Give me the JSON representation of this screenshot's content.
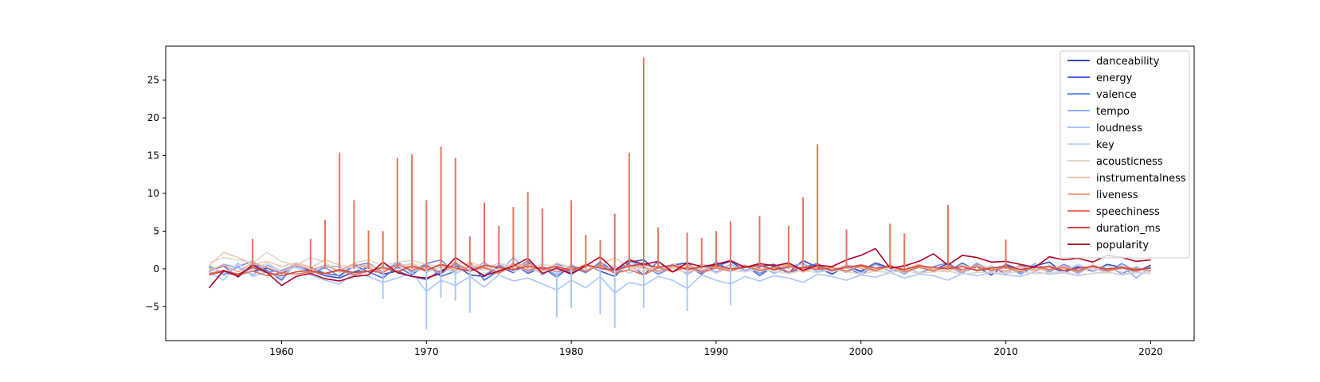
{
  "chart_data": {
    "type": "line",
    "title": "",
    "xlabel": "",
    "ylabel": "",
    "xlim": [
      1952,
      2023
    ],
    "ylim": [
      -9.5,
      29.5
    ],
    "x_ticks": [
      1960,
      1970,
      1980,
      1990,
      2000,
      2010,
      2020
    ],
    "y_ticks": [
      -5,
      0,
      5,
      10,
      15,
      20,
      25
    ],
    "grid": false,
    "legend_position": "upper-right",
    "x": [
      1955,
      1956,
      1957,
      1958,
      1959,
      1960,
      1961,
      1962,
      1963,
      1964,
      1965,
      1966,
      1967,
      1968,
      1969,
      1970,
      1971,
      1972,
      1973,
      1974,
      1975,
      1976,
      1977,
      1978,
      1979,
      1980,
      1981,
      1982,
      1983,
      1984,
      1985,
      1986,
      1987,
      1988,
      1989,
      1990,
      1991,
      1992,
      1993,
      1994,
      1995,
      1996,
      1997,
      1998,
      1999,
      2000,
      2001,
      2002,
      2003,
      2004,
      2005,
      2006,
      2007,
      2008,
      2009,
      2010,
      2011,
      2012,
      2013,
      2014,
      2015,
      2016,
      2017,
      2018,
      2019,
      2020
    ],
    "series": [
      {
        "name": "danceability",
        "color": "#3b4cc0",
        "values": [
          0.2,
          -0.5,
          -0.8,
          -0.3,
          0.1,
          -0.6,
          0.3,
          -0.2,
          -0.9,
          -1.2,
          -0.4,
          0.2,
          -0.7,
          -0.3,
          -1.0,
          -1.4,
          -0.2,
          0.5,
          -0.8,
          -1.0,
          0.3,
          -0.5,
          0.8,
          -0.2,
          0.4,
          -0.6,
          0.6,
          -0.3,
          -1.0,
          0.9,
          1.2,
          -0.4,
          0.5,
          0.8,
          -0.6,
          0.4,
          1.0,
          -0.2,
          0.3,
          0.6,
          -0.5,
          1.1,
          0.2,
          -0.7,
          0.4,
          -0.3,
          0.8,
          0.1,
          -0.6,
          0.5,
          -0.2,
          0.7,
          -0.4,
          0.3,
          -0.8,
          0.6,
          -0.1,
          0.4,
          0.9,
          -0.5,
          0.3,
          -0.3,
          0.6,
          0.2,
          -0.4,
          0.5
        ]
      },
      {
        "name": "energy",
        "color": "#4f69d9",
        "values": [
          -0.3,
          0.4,
          -1.1,
          0.6,
          -0.2,
          -1.5,
          0.8,
          0.2,
          -0.6,
          -0.9,
          0.5,
          -0.4,
          -1.2,
          0.3,
          -0.8,
          0.6,
          -1.0,
          -0.3,
          0.9,
          -1.5,
          -0.2,
          0.7,
          -0.6,
          0.2,
          -1.1,
          0.4,
          -0.5,
          0.9,
          -0.3,
          0.6,
          -0.8,
          1.0,
          -0.4,
          0.3,
          -0.7,
          0.8,
          -0.2,
          0.5,
          -0.9,
          0.4,
          -0.6,
          0.2,
          0.7,
          -0.5,
          0.3,
          -0.8,
          0.6,
          -0.3,
          0.5,
          -0.6,
          0.2,
          -0.4,
          0.8,
          -0.3,
          0.4,
          -0.7,
          0.5,
          -0.2,
          0.3,
          -0.5,
          0.6,
          -0.3,
          0.4,
          -0.6,
          0.2,
          -0.4
        ]
      },
      {
        "name": "valence",
        "color": "#6a8bef",
        "values": [
          0.5,
          -0.8,
          0.3,
          1.0,
          -0.4,
          -0.2,
          0.6,
          -0.7,
          0.2,
          -1.0,
          0.4,
          0.8,
          -0.5,
          0.9,
          -0.3,
          0.7,
          1.2,
          -0.6,
          0.3,
          -0.9,
          0.5,
          -0.2,
          1.1,
          -0.8,
          0.6,
          0.2,
          -0.5,
          0.8,
          -0.3,
          1.0,
          0.4,
          -0.7,
          0.2,
          0.6,
          -0.4,
          0.9,
          -0.2,
          0.5,
          -0.6,
          0.3,
          0.8,
          -0.4,
          0.6,
          -0.2,
          0.4,
          -0.5,
          0.7,
          -0.3,
          0.5,
          -0.6,
          0.3,
          0.8,
          -0.4,
          0.6,
          -0.2,
          0.5,
          -0.7,
          0.3,
          -0.4,
          0.6,
          -0.2,
          0.4,
          -0.5,
          0.7,
          -0.3,
          0.2
        ]
      },
      {
        "name": "tempo",
        "color": "#8caffe",
        "values": [
          -0.4,
          0.6,
          0.2,
          -0.8,
          0.5,
          -0.3,
          0.7,
          -0.6,
          0.4,
          0.3,
          -0.9,
          0.5,
          -0.2,
          0.8,
          -0.5,
          0.2,
          -0.7,
          0.6,
          -0.3,
          0.9,
          -0.6,
          1.5,
          -0.4,
          0.3,
          -0.8,
          0.5,
          -0.2,
          0.6,
          -0.5,
          0.4,
          0.8,
          -0.3,
          0.5,
          -0.7,
          0.3,
          -0.4,
          0.6,
          -0.2,
          0.5,
          -0.6,
          0.3,
          0.7,
          -0.4,
          0.2,
          -0.5,
          0.6,
          -0.3,
          0.4,
          -0.7,
          0.5,
          -0.2,
          0.3,
          -0.6,
          0.8,
          -0.3,
          0.4,
          -0.5,
          0.7,
          -0.2,
          0.3,
          -0.6,
          0.5,
          -0.3,
          0.4,
          -1.2,
          0.3
        ]
      },
      {
        "name": "loudness",
        "color": "#aac7fd",
        "values": [
          -0.5,
          -1.5,
          0.8,
          -1.0,
          -0.4,
          -1.2,
          0.5,
          -0.8,
          -1.5,
          -2.0,
          -0.6,
          -1.0,
          -1.8,
          -1.2,
          -0.5,
          -3.0,
          -1.5,
          -2.2,
          -1.0,
          -2.4,
          -0.8,
          -1.6,
          -1.2,
          -2.0,
          -2.8,
          -1.5,
          -2.5,
          -1.0,
          -3.2,
          -1.8,
          -2.2,
          -1.0,
          -1.5,
          -2.6,
          -0.8,
          -1.5,
          -2.0,
          -1.0,
          -1.6,
          -0.9,
          -1.2,
          -1.8,
          -0.7,
          -1.0,
          -1.5,
          -0.8,
          -1.1,
          -0.5,
          -1.2,
          -0.7,
          -0.9,
          -1.5,
          -0.6,
          -0.9,
          -0.5,
          -0.8,
          -1.0,
          -0.4,
          -0.7,
          -0.5,
          -0.9,
          -0.6,
          -0.4,
          -0.8,
          -0.5,
          -0.6
        ]
      },
      {
        "name": "key",
        "color": "#c5d5f3",
        "values": [
          0.3,
          -0.6,
          0.5,
          -0.2,
          0.8,
          -0.4,
          0.2,
          -0.7,
          0.6,
          -0.3,
          0.4,
          -0.8,
          0.5,
          -0.2,
          0.7,
          -0.5,
          0.3,
          -0.6,
          0.4,
          -0.2,
          0.8,
          -0.4,
          0.3,
          -0.7,
          0.5,
          -0.3,
          0.6,
          -0.2,
          0.4,
          -0.6,
          0.3,
          -0.5,
          0.7,
          -0.2,
          0.4,
          -0.6,
          0.3,
          -0.4,
          0.5,
          -0.3,
          0.6,
          -0.2,
          0.4,
          -0.5,
          0.3,
          -0.6,
          0.5,
          -0.2,
          0.4,
          -0.5,
          0.3,
          -0.4,
          0.6,
          -0.3,
          0.4,
          -0.5,
          0.2,
          -0.4,
          0.5,
          -0.3,
          0.6,
          -0.2,
          0.4,
          -0.5,
          0.3,
          -0.4
        ]
      },
      {
        "name": "acousticness",
        "color": "#e0d5cb",
        "values": [
          0.8,
          1.5,
          1.2,
          0.8,
          2.2,
          1.0,
          0.5,
          1.5,
          0.9,
          -0.5,
          0.8,
          1.2,
          0.4,
          0.9,
          1.1,
          0.6,
          0.3,
          0.9,
          0.5,
          0.2,
          0.7,
          0.4,
          0.1,
          0.6,
          0.3,
          -0.1,
          0.4,
          0.2,
          -0.3,
          0.3,
          0.1,
          -0.4,
          0.2,
          0.0,
          -0.5,
          0.1,
          -0.2,
          -0.4,
          0.0,
          -0.3,
          -0.6,
          -0.2,
          -0.5,
          -0.1,
          -0.4,
          -0.7,
          -0.3,
          -0.5,
          -0.2,
          -0.6,
          -0.4,
          -0.3,
          -0.7,
          -0.5,
          -0.4,
          -0.6,
          -0.3,
          -0.7,
          -0.5,
          -0.4,
          -0.8,
          -0.6,
          -0.5,
          -0.7,
          -0.4,
          -0.6
        ]
      },
      {
        "name": "instrumentalness",
        "color": "#f3c6ae",
        "values": [
          0.4,
          2.2,
          1.5,
          0.6,
          1.0,
          0.3,
          0.8,
          0.2,
          1.2,
          0.5,
          0.1,
          0.6,
          -0.2,
          0.4,
          0.7,
          0.0,
          0.5,
          -0.3,
          0.9,
          0.2,
          -0.1,
          0.6,
          0.3,
          -0.4,
          0.8,
          0.1,
          -0.2,
          0.5,
          1.5,
          0.2,
          -0.3,
          0.4,
          0.1,
          -0.5,
          0.6,
          0.2,
          -0.3,
          0.4,
          0.0,
          -0.2,
          0.5,
          -0.4,
          0.3,
          0.1,
          -0.3,
          0.6,
          -0.2,
          0.2,
          -0.5,
          0.4,
          0.1,
          -0.3,
          0.5,
          -0.1,
          0.2,
          -0.4,
          0.3,
          0.0,
          -0.2,
          0.4,
          -0.3,
          0.1,
          -0.5,
          0.3,
          0.0,
          -0.2
        ]
      },
      {
        "name": "liveness",
        "color": "#f4a687",
        "values": [
          -0.2,
          0.5,
          -0.4,
          0.8,
          0.2,
          -0.5,
          0.6,
          -0.1,
          0.4,
          -0.3,
          0.7,
          0.1,
          -0.4,
          0.5,
          0.2,
          -0.3,
          0.6,
          -0.2,
          0.4,
          0.1,
          -0.5,
          0.3,
          0.7,
          -0.2,
          0.4,
          -0.4,
          0.6,
          0.1,
          -0.3,
          0.5,
          0.2,
          -0.4,
          0.3,
          0.6,
          -0.2,
          0.4,
          -0.1,
          0.5,
          -0.3,
          0.2,
          0.6,
          -0.4,
          0.3,
          -0.2,
          0.5,
          0.1,
          -0.3,
          0.4,
          -0.1,
          0.6,
          -0.2,
          0.3,
          -0.4,
          0.5,
          0.1,
          -0.3,
          0.4,
          -0.2,
          0.3,
          0.1,
          -0.4,
          0.5,
          -0.2,
          0.3,
          0.0,
          -0.3
        ]
      },
      {
        "name": "speechiness",
        "color": "#e7745b",
        "values": [
          -0.6,
          -0.2,
          -0.8,
          -0.3,
          -0.9,
          -0.5,
          -0.7,
          -0.4,
          -0.6,
          -0.2,
          -0.8,
          -0.3,
          -0.5,
          0.6,
          -0.2,
          0.4,
          -0.5,
          0.8,
          -0.3,
          0.2,
          -0.6,
          0.5,
          -0.2,
          0.3,
          -0.4,
          0.2,
          -0.3,
          0.5,
          -0.6,
          -0.1,
          -0.8,
          0.2,
          -0.4,
          0.3,
          -0.5,
          0.1,
          -0.3,
          0.4,
          -0.2,
          0.2,
          -0.4,
          0.3,
          -0.1,
          0.2,
          -0.3,
          0.4,
          -0.2,
          0.5,
          -0.4,
          0.2,
          -0.3,
          0.4,
          -0.1,
          0.3,
          -0.2,
          0.2,
          -0.4,
          0.3,
          -0.1,
          0.2,
          -0.3,
          0.4,
          -0.2,
          0.1,
          -0.3,
          0.2
        ]
      },
      {
        "name": "duration_ms",
        "color": "#d0473d",
        "values": [
          -0.8,
          -0.3,
          -0.7,
          0.2,
          -0.5,
          -0.9,
          -0.4,
          -0.2,
          -0.6,
          -0.1,
          -0.5,
          -0.3,
          0.2,
          -0.4,
          0.4,
          -0.2,
          0.6,
          0.1,
          -0.3,
          0.5,
          0.2,
          -0.1,
          0.4,
          0.0,
          0.3,
          -0.2,
          0.5,
          0.1,
          -0.2,
          0.4,
          0.6,
          0.2,
          0.5,
          -0.1,
          0.3,
          0.4,
          0.0,
          0.2,
          0.5,
          -0.1,
          0.3,
          0.1,
          0.4,
          -0.2,
          0.2,
          0.5,
          0.1,
          0.3,
          -0.1,
          0.4,
          0.2,
          0.0,
          0.3,
          -0.2,
          0.1,
          0.4,
          -0.1,
          0.2,
          0.3,
          -0.2,
          0.1,
          0.3,
          0.0,
          0.2,
          -0.1,
          0.1
        ]
      },
      {
        "name": "popularity",
        "color": "#b40426",
        "values": [
          -2.5,
          -0.2,
          -1.0,
          0.5,
          -0.5,
          -2.2,
          -1.0,
          -0.6,
          -1.3,
          -1.6,
          -1.0,
          -0.8,
          0.9,
          -0.5,
          -1.0,
          -1.2,
          -0.6,
          1.5,
          0.2,
          -0.9,
          -0.3,
          0.4,
          1.4,
          -0.6,
          0.1,
          -0.7,
          0.4,
          1.6,
          -0.2,
          1.2,
          0.6,
          1.0,
          -0.4,
          0.8,
          0.3,
          0.6,
          1.1,
          0.2,
          0.7,
          0.4,
          0.8,
          -0.2,
          0.5,
          0.3,
          1.2,
          1.8,
          2.7,
          0.1,
          0.4,
          1.0,
          2.0,
          0.5,
          1.8,
          1.5,
          0.9,
          1.0,
          0.6,
          0.2,
          1.6,
          1.2,
          1.4,
          0.9,
          1.8,
          1.5,
          1.0,
          1.2
        ]
      }
    ],
    "spikes": [
      {
        "name": "speechiness",
        "x": [
          1958,
          1962,
          1963,
          1964,
          1965,
          1966,
          1967,
          1968,
          1969,
          1970,
          1971,
          1972,
          1973,
          1974,
          1975,
          1976,
          1977,
          1978,
          1980,
          1981,
          1982,
          1983,
          1984,
          1985,
          1986,
          1988,
          1989,
          1990,
          1991,
          1993,
          1995,
          1996,
          1997,
          1999,
          2002,
          2003,
          2006,
          2010
        ],
        "values": [
          4.0,
          4.0,
          6.5,
          15.4,
          9.1,
          5.1,
          5.0,
          14.7,
          15.2,
          9.1,
          16.2,
          14.7,
          4.3,
          8.8,
          5.7,
          8.2,
          10.2,
          8.0,
          9.1,
          4.5,
          3.8,
          7.3,
          15.4,
          28.0,
          5.5,
          4.8,
          4.1,
          5.0,
          6.3,
          7.0,
          5.7,
          9.5,
          16.5,
          5.2,
          6.0,
          4.7,
          8.5,
          3.9
        ]
      },
      {
        "name": "loudness",
        "x": [
          1967,
          1970,
          1971,
          1972,
          1973,
          1979,
          1980,
          1982,
          1983,
          1985,
          1988,
          1991
        ],
        "values": [
          -4.0,
          -8.0,
          -3.8,
          -4.2,
          -5.8,
          -6.4,
          -5.2,
          -6.0,
          -7.8,
          -5.2,
          -5.6,
          -4.8
        ]
      }
    ]
  }
}
